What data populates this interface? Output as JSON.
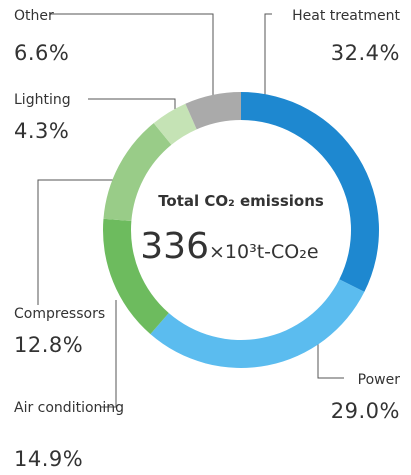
{
  "chart_data": {
    "type": "donut",
    "categories": [
      "Heat treatment",
      "Power",
      "Air conditioning",
      "Compressors",
      "Lighting",
      "Other"
    ],
    "values": [
      32.4,
      29.0,
      14.9,
      12.8,
      4.3,
      6.6
    ],
    "value_labels": [
      "32.4%",
      "29.0%",
      "14.9%",
      "12.8%",
      "4.3%",
      "6.6%"
    ],
    "colors": [
      "#1e88d0",
      "#5bbcef",
      "#6dbb5e",
      "#99cc88",
      "#c5e3b5",
      "#aaaaaa"
    ],
    "center": {
      "title": "Total CO₂ emissions",
      "value": 336,
      "unit": "×10³t-CO₂e"
    }
  }
}
